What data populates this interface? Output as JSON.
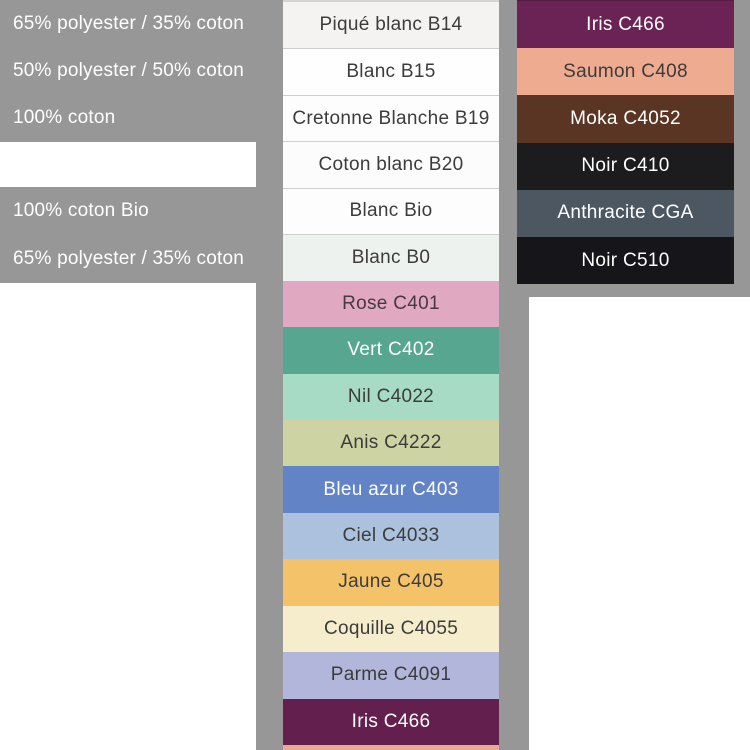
{
  "palette": {
    "panel_gray": "#979797",
    "white_text": "#ffffff",
    "dark_text": "#3c3c3c",
    "divider": "#cfcfcf"
  },
  "left_panel": {
    "rows": [
      {
        "label": "65% polyester / 35% coton",
        "spacer": false
      },
      {
        "label": "50% polyester / 50% coton",
        "spacer": false
      },
      {
        "label": "100% coton",
        "spacer": false
      },
      {
        "label": "",
        "spacer": true
      },
      {
        "label": "100% coton Bio",
        "spacer": false
      },
      {
        "label": "65% polyester / 35% coton",
        "spacer": false
      }
    ]
  },
  "middle_column": {
    "swatches": [
      {
        "label": "Piqué blanc B14",
        "color": "#f4f3f1",
        "text": "#3c3c3c",
        "texture": "pique",
        "sep": false
      },
      {
        "label": "Blanc B15",
        "color": "#fefefe",
        "text": "#3c3c3c",
        "sep": true
      },
      {
        "label": "Cretonne Blanche B19",
        "color": "#fdfdfd",
        "text": "#3c3c3c",
        "sep": true
      },
      {
        "label": "Coton blanc B20",
        "color": "#fcfcfc",
        "text": "#3c3c3c",
        "sep": true
      },
      {
        "label": "Blanc Bio",
        "color": "#fdfdfd",
        "text": "#3c3c3c",
        "sep": true
      },
      {
        "label": "Blanc B0",
        "color": "#eef2ef",
        "text": "#3c3c3c",
        "sep": true
      },
      {
        "label": "Rose C401",
        "color": "#e1a8c2",
        "text": "#463a40",
        "sep": false
      },
      {
        "label": "Vert C402",
        "color": "#57a690",
        "text": "#ffffff",
        "sep": false
      },
      {
        "label": "Nil C4022",
        "color": "#a7dbc5",
        "text": "#3c3c3c",
        "sep": false
      },
      {
        "label": "Anis C4222",
        "color": "#cdd3a3",
        "text": "#3c3c3c",
        "sep": false
      },
      {
        "label": "Bleu azur C403",
        "color": "#6284c7",
        "text": "#ffffff",
        "sep": false
      },
      {
        "label": "Ciel C4033",
        "color": "#abc1dd",
        "text": "#3c3c3c",
        "sep": false
      },
      {
        "label": "Jaune C405",
        "color": "#f4c268",
        "text": "#3c3c3c",
        "texture": "jaune",
        "sep": false
      },
      {
        "label": "Coquille C4055",
        "color": "#f5edcb",
        "text": "#3c3c3c",
        "sep": false
      },
      {
        "label": "Parme C4091",
        "color": "#b2b6da",
        "text": "#3c3c3c",
        "sep": false
      },
      {
        "label": "Iris C466",
        "color": "#63204f",
        "text": "#ffffff",
        "sep": false
      }
    ],
    "partial_next_color": "#eaaa8d"
  },
  "right_column": {
    "swatches": [
      {
        "label": "Iris C466",
        "color": "#6b2355",
        "text": "#ffffff"
      },
      {
        "label": "Saumon C408",
        "color": "#eeab8f",
        "text": "#3c3c3c"
      },
      {
        "label": "Moka C4052",
        "color": "#5a3523",
        "text": "#ffffff"
      },
      {
        "label": "Noir C410",
        "color": "#1c1c1e",
        "text": "#ffffff"
      },
      {
        "label": "Anthracite CGA",
        "color": "#4d5762",
        "text": "#ffffff"
      },
      {
        "label": "Noir C510",
        "color": "#15151a",
        "text": "#ffffff"
      }
    ]
  }
}
